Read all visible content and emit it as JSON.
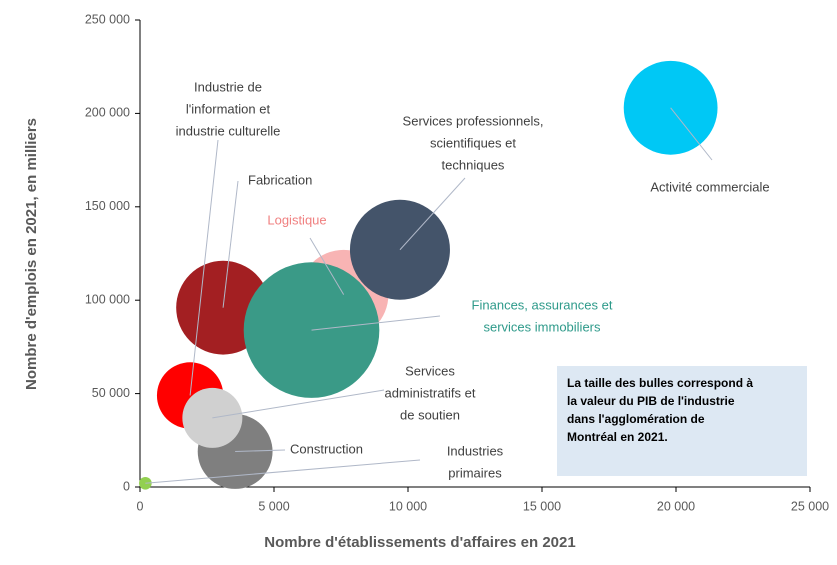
{
  "chart_data": {
    "type": "bubble",
    "xlabel": "Nombre d'établissements d'affaires en 2021",
    "ylabel": "Nombre d'emplois en 2021, en milliers",
    "xlim": [
      0,
      25000
    ],
    "xticks": [
      0,
      {
        "value": 5000,
        "label": "5 000"
      },
      {
        "value": 10000,
        "label": "10 000"
      },
      {
        "value": 15000,
        "label": "15 000"
      },
      {
        "value": 20000,
        "label": "20 000"
      },
      {
        "value": 25000,
        "label": "25 000"
      }
    ],
    "ylim": [
      0,
      250000
    ],
    "yticks": [
      0,
      {
        "value": 50000,
        "label": "50 000"
      },
      {
        "value": 100000,
        "label": "100 000"
      },
      {
        "value": 150000,
        "label": "150 000"
      },
      {
        "value": 200000,
        "label": "200 000"
      },
      {
        "value": 250000,
        "label": "250 000"
      }
    ],
    "grid": false,
    "annotation": [
      "La taille des bulles correspond à",
      "la valeur du PIB de l'industrie",
      "dans l'agglomération de",
      "Montréal en 2021."
    ],
    "series": [
      {
        "name": [
          "Activité commerciale"
        ],
        "color": "#00c8f5",
        "x": 19800,
        "y": 203000,
        "size": 22
      },
      {
        "name": [
          "Logistique"
        ],
        "color": "#f8b4b4",
        "x": 7600,
        "y": 103000,
        "size": 20
      },
      {
        "name": [
          "Services professionnels,",
          "scientifiques et",
          "techniques"
        ],
        "color": "#44546a",
        "x": 9700,
        "y": 127000,
        "size": 25
      },
      {
        "name": [
          "Fabrication"
        ],
        "color": "#a31f22",
        "x": 3100,
        "y": 96000,
        "size": 22
      },
      {
        "name": [
          "Finances, assurances et",
          "services immobiliers"
        ],
        "color": "#3a9a87",
        "x": 6400,
        "y": 84000,
        "size": 46
      },
      {
        "name": [
          "Industrie de",
          "l'information et",
          "industrie culturelle"
        ],
        "color": "#ff0000",
        "x": 1870,
        "y": 49000,
        "size": 11
      },
      {
        "name": [
          "Construction"
        ],
        "color": "#7f7f7f",
        "x": 3550,
        "y": 19000,
        "size": 14
      },
      {
        "name": [
          "Services",
          "administratifs et",
          "de soutien"
        ],
        "color": "#d0d0d0",
        "x": 2700,
        "y": 37000,
        "size": 9
      },
      {
        "name": [
          "Industries",
          "primaires"
        ],
        "color": "#92d050",
        "x": 200,
        "y": 2000,
        "size": 0.4
      }
    ]
  }
}
